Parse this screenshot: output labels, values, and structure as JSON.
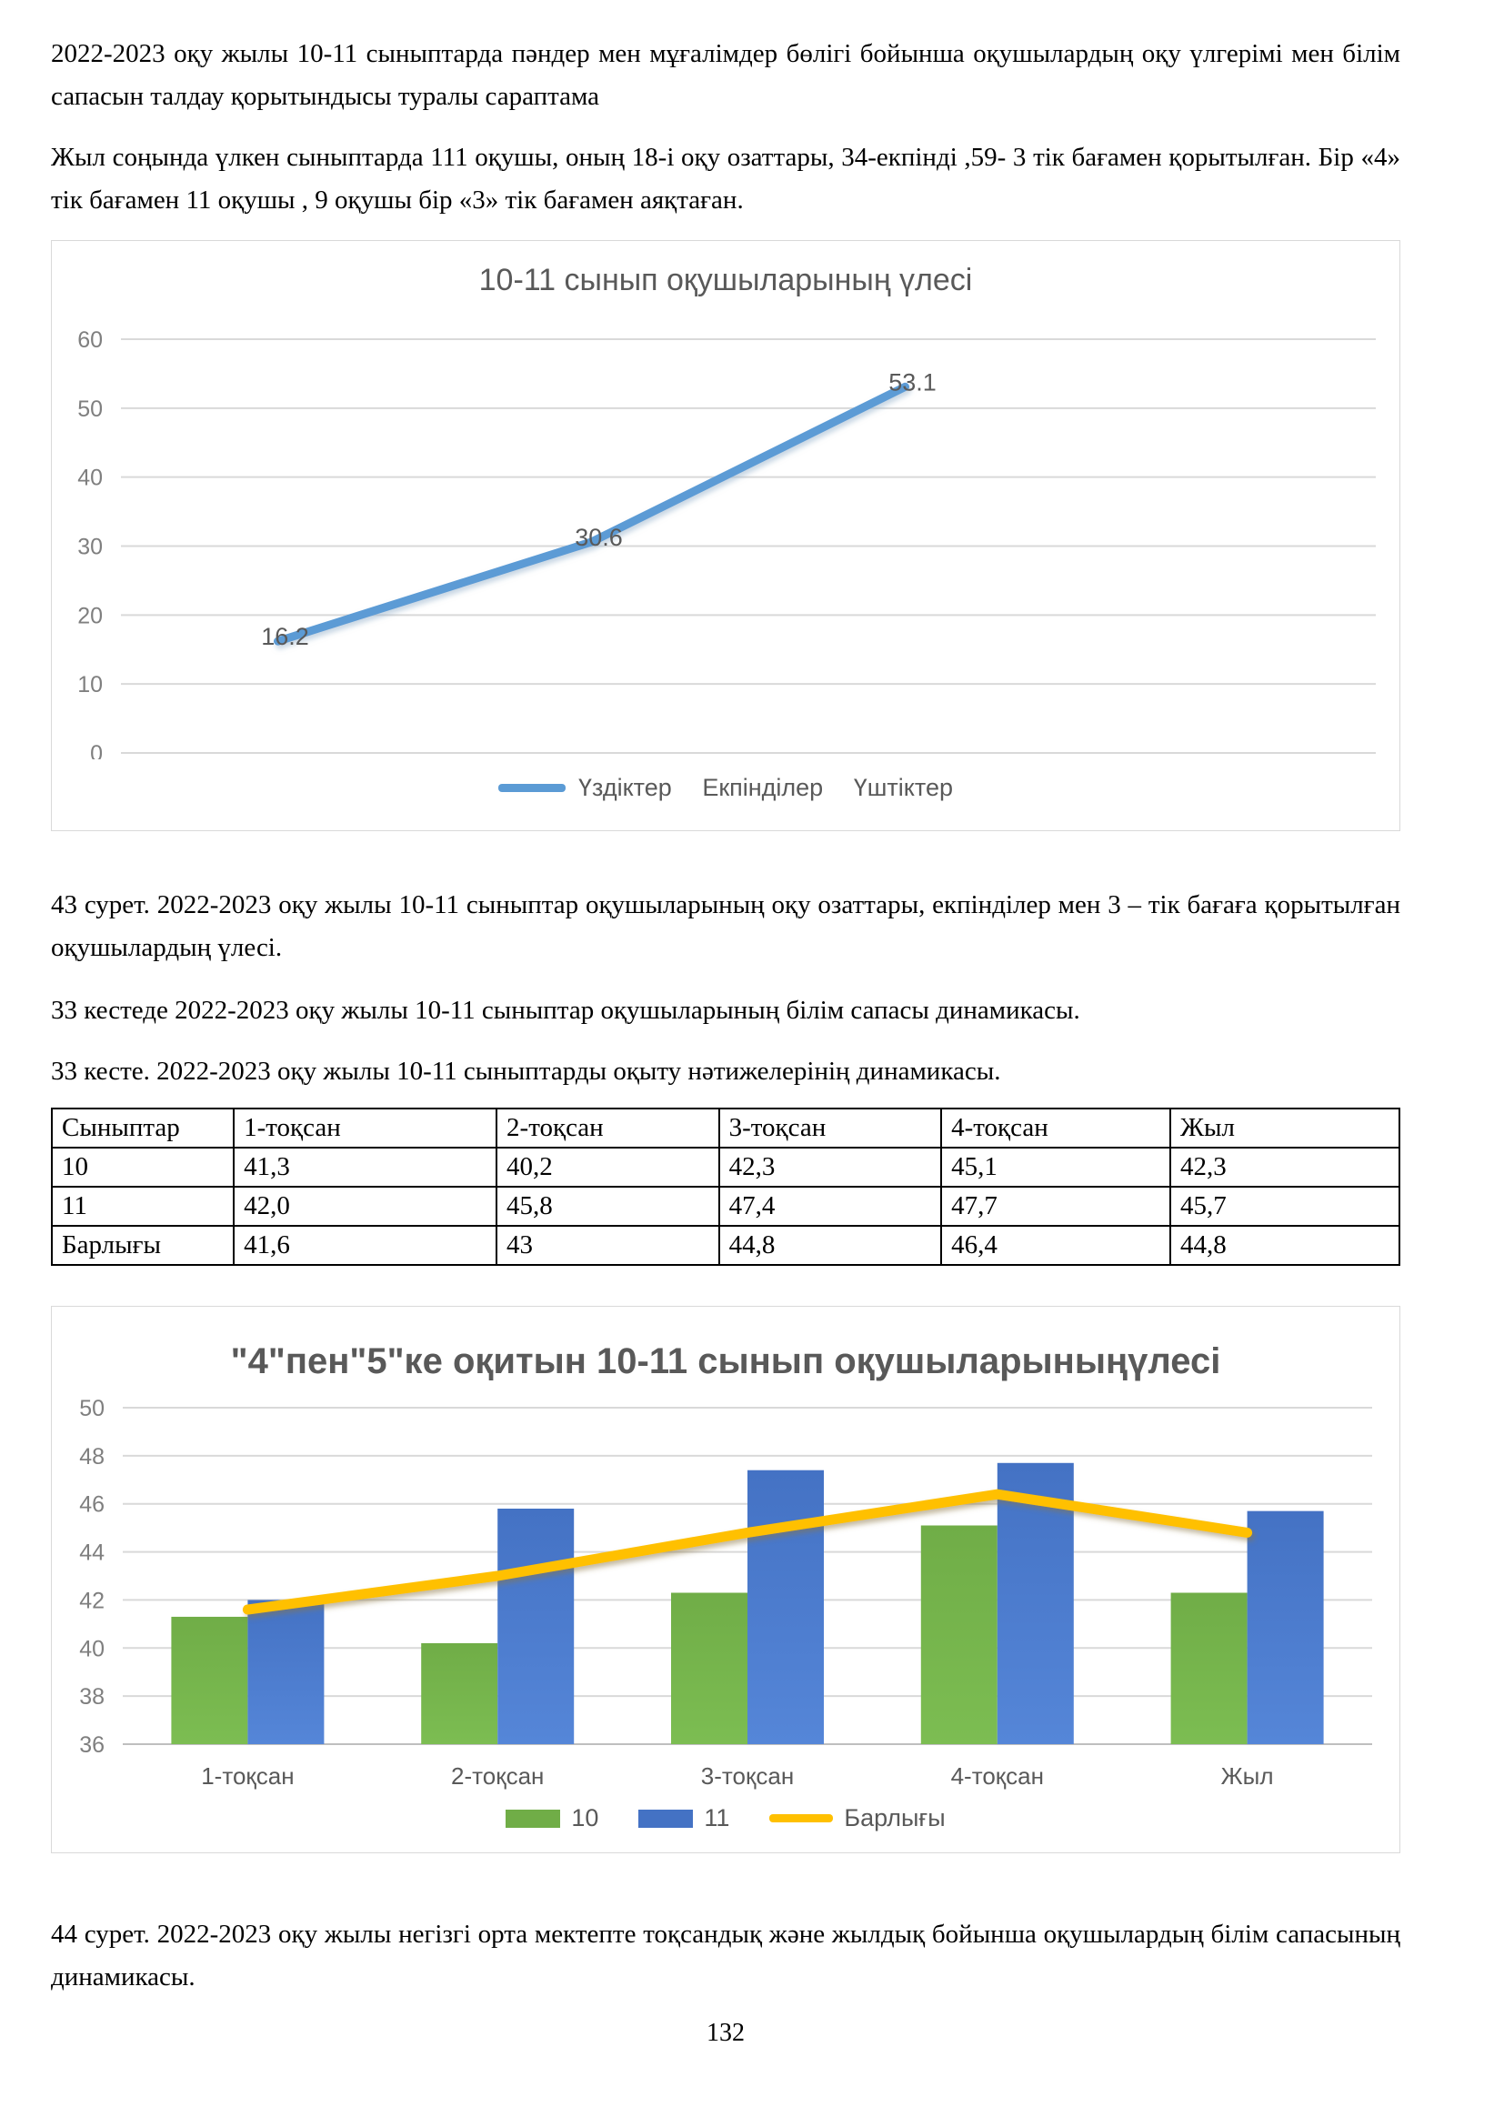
{
  "paragraphs": {
    "intro": "2022-2023 оқу жылы 10-11 сыныптарда пәндер мен мұғалімдер бөлігі бойынша оқушылардың оқу үлгерімі мен білім сапасын талдау қорытындысы туралы сараптама",
    "year_end": "Жыл соңында үлкен сыныптарда 111 оқушы, оның 18-і оқу озаттары, 34-екпінді ,59- 3 тік бағамен қорытылған. Бір «4» тік бағамен 11 оқушы , 9 оқушы бір «3» тік бағамен аяқтаған.",
    "caption_43": "43 сурет. 2022-2023 оқу жылы 10-11 сыныптар оқушыларының оқу озаттары, екпінділер мен 3 – тік бағаға қорытылған оқушылардың үлесі.",
    "table_intro": "33 кестеде 2022-2023 оқу жылы 10-11 сыныптар оқушыларының білім сапасы динамикасы.",
    "table_title": "33 кесте. 2022-2023 оқу жылы 10-11 сыныптарды оқыту нәтижелерінің динамикасы.",
    "caption_44": "44 сурет. 2022-2023 оқу жылы негізгі орта мектепте тоқсандық және жылдық бойынша оқушылардың білім сапасының динамикасы."
  },
  "table": {
    "headers": [
      "Сыныптар",
      "1-тоқсан",
      "2-тоқсан",
      "3-тоқсан",
      "4-тоқсан",
      "Жыл"
    ],
    "rows": [
      [
        "10",
        "41,3",
        "40,2",
        "42,3",
        "45,1",
        "42,3"
      ],
      [
        "11",
        "42,0",
        "45,8",
        "47,4",
        "47,7",
        "45,7"
      ],
      [
        "Барлығы",
        "41,6",
        "43",
        "44,8",
        "46,4",
        "44,8"
      ]
    ]
  },
  "chart_data": [
    {
      "type": "line",
      "title": "10-11 сынып оқушыларының үлесі",
      "categories": [
        "Үздіктер",
        "Екпінділер",
        "Үштіктер"
      ],
      "values": [
        16.2,
        30.6,
        53.1
      ],
      "point_labels": [
        "16.2",
        "30.6",
        "53.1"
      ],
      "legend": [
        "Үздіктер",
        "Екпінділер",
        "Үштіктер"
      ],
      "xlabel": "",
      "ylabel": "",
      "ylim": [
        0,
        60
      ],
      "ytick_step": 10,
      "slots": 4,
      "line_color": "#5B9BD5",
      "grid_color": "#d9d9d9",
      "legend_position": "bottom"
    },
    {
      "type": "bar",
      "title": "\"4\"пен\"5\"ке оқитын 10-11 сынып оқушыларыныңүлесі",
      "categories": [
        "1-тоқсан",
        "2-тоқсан",
        "3-тоқсан",
        "4-тоқсан",
        "Жыл"
      ],
      "series": [
        {
          "name": "10",
          "type": "bar",
          "color": "#70AD47",
          "color2": "#7cbd52",
          "values": [
            41.3,
            40.2,
            42.3,
            45.1,
            42.3
          ]
        },
        {
          "name": "11",
          "type": "bar",
          "color": "#4472C4",
          "color2": "#5586d8",
          "values": [
            42.0,
            45.8,
            47.4,
            47.7,
            45.7
          ]
        },
        {
          "name": "Барлығы",
          "type": "line",
          "color": "#FFC000",
          "values": [
            41.6,
            43,
            44.8,
            46.4,
            44.8
          ]
        }
      ],
      "xlabel": "",
      "ylabel": "",
      "ylim": [
        36,
        50
      ],
      "ytick_step": 2,
      "grid_color": "#d9d9d9",
      "legend_position": "bottom"
    }
  ],
  "page_number": "132"
}
